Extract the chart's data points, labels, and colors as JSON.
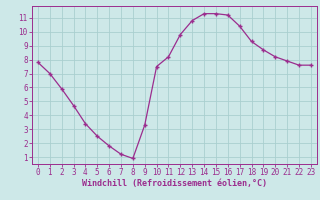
{
  "x": [
    0,
    1,
    2,
    3,
    4,
    5,
    6,
    7,
    8,
    9,
    10,
    11,
    12,
    13,
    14,
    15,
    16,
    17,
    18,
    19,
    20,
    21,
    22,
    23
  ],
  "y": [
    7.8,
    7.0,
    5.9,
    4.7,
    3.4,
    2.5,
    1.8,
    1.2,
    0.9,
    3.3,
    7.5,
    8.2,
    9.8,
    10.8,
    11.3,
    11.3,
    11.2,
    10.4,
    9.3,
    8.7,
    8.2,
    7.9,
    7.6,
    7.6
  ],
  "line_color": "#9b2d8e",
  "marker": "+",
  "marker_size": 3.5,
  "marker_lw": 1.0,
  "bg_color": "#cde8e8",
  "grid_color": "#aacfcf",
  "axis_color": "#9b2d8e",
  "tick_color": "#9b2d8e",
  "xlabel": "Windchill (Refroidissement éolien,°C)",
  "xlabel_fontsize": 6.0,
  "tick_fontsize": 5.5,
  "xlim": [
    -0.5,
    23.5
  ],
  "ylim": [
    0.5,
    11.85
  ],
  "yticks": [
    1,
    2,
    3,
    4,
    5,
    6,
    7,
    8,
    9,
    10,
    11
  ],
  "xticks": [
    0,
    1,
    2,
    3,
    4,
    5,
    6,
    7,
    8,
    9,
    10,
    11,
    12,
    13,
    14,
    15,
    16,
    17,
    18,
    19,
    20,
    21,
    22,
    23
  ]
}
